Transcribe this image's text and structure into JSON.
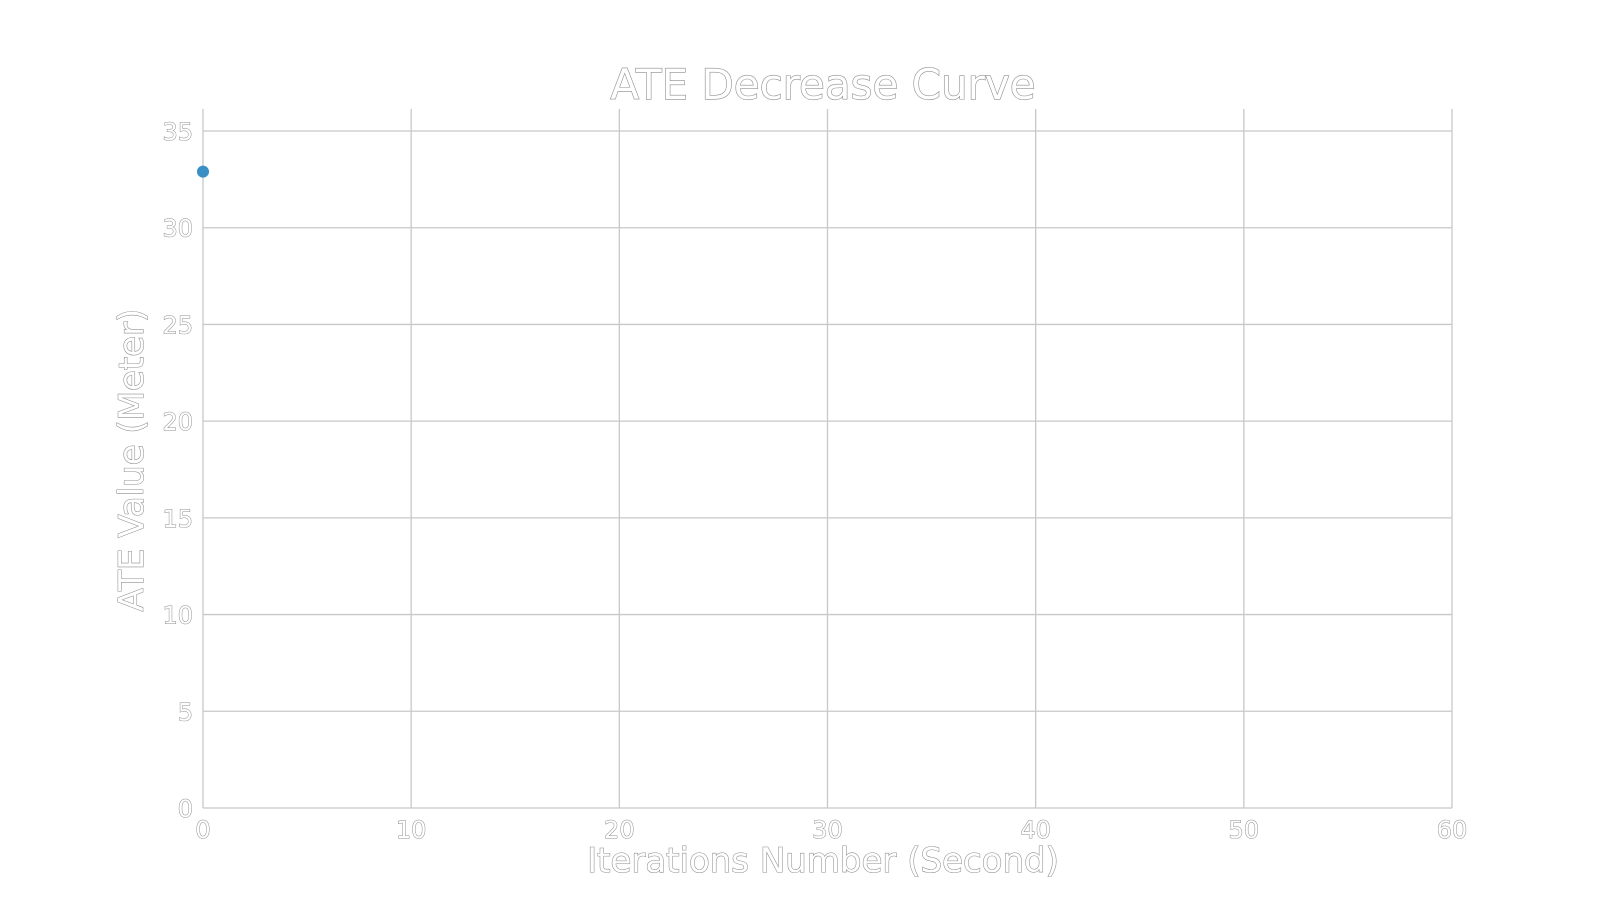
{
  "chart_data": {
    "type": "scatter",
    "title": "ATE Decrease Curve",
    "xlabel": "Iterations Number (Second)",
    "ylabel": "ATE Value (Meter)",
    "xlim": [
      0,
      60
    ],
    "ylim": [
      0,
      35
    ],
    "xticks": [
      0,
      10,
      20,
      30,
      40,
      50,
      60
    ],
    "yticks": [
      0,
      5,
      10,
      15,
      20,
      25,
      30,
      35
    ],
    "grid": true,
    "series": [
      {
        "x": [
          0
        ],
        "y": [
          32.9
        ],
        "color": "#3a8fc4"
      }
    ]
  }
}
